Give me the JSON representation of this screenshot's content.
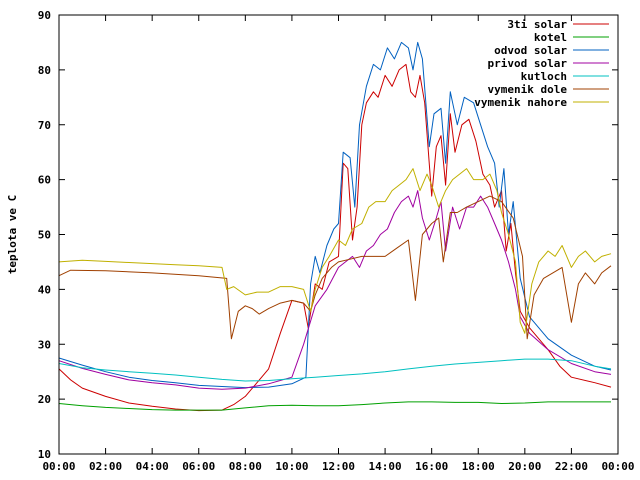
{
  "chart_data": {
    "type": "line",
    "title": "",
    "xlabel": "",
    "ylabel": "teplota ve C",
    "xlim": [
      0,
      24
    ],
    "ylim": [
      10,
      90
    ],
    "grid": false,
    "legend_position": "top-right",
    "x_ticks": [
      "00:00",
      "02:00",
      "04:00",
      "06:00",
      "08:00",
      "10:00",
      "12:00",
      "14:00",
      "16:00",
      "18:00",
      "20:00",
      "22:00",
      "00:00"
    ],
    "y_ticks": [
      "10",
      "20",
      "30",
      "40",
      "50",
      "60",
      "70",
      "80",
      "90"
    ],
    "series": [
      {
        "name": "3ti solar",
        "color": "#cc0000",
        "points": [
          [
            0,
            25.5
          ],
          [
            0.5,
            23.5
          ],
          [
            1,
            22
          ],
          [
            2,
            20.5
          ],
          [
            3,
            19.3
          ],
          [
            4,
            18.7
          ],
          [
            5,
            18.2
          ],
          [
            6,
            17.9
          ],
          [
            7,
            18
          ],
          [
            7.5,
            19
          ],
          [
            8,
            20.5
          ],
          [
            8.5,
            23
          ],
          [
            9,
            25.5
          ],
          [
            9.5,
            32
          ],
          [
            10,
            38
          ],
          [
            10.5,
            37.5
          ],
          [
            10.7,
            33
          ],
          [
            11,
            41
          ],
          [
            11.3,
            40
          ],
          [
            11.6,
            45
          ],
          [
            12,
            46
          ],
          [
            12.2,
            63
          ],
          [
            12.4,
            62
          ],
          [
            12.6,
            49
          ],
          [
            12.8,
            55
          ],
          [
            13,
            70
          ],
          [
            13.2,
            74
          ],
          [
            13.5,
            76
          ],
          [
            13.7,
            75
          ],
          [
            14,
            79
          ],
          [
            14.3,
            77
          ],
          [
            14.6,
            80
          ],
          [
            14.9,
            81
          ],
          [
            15.1,
            76
          ],
          [
            15.3,
            75
          ],
          [
            15.5,
            79
          ],
          [
            15.7,
            74
          ],
          [
            16,
            57
          ],
          [
            16.2,
            66
          ],
          [
            16.4,
            68
          ],
          [
            16.6,
            59
          ],
          [
            16.8,
            72
          ],
          [
            17,
            65
          ],
          [
            17.3,
            70
          ],
          [
            17.6,
            71
          ],
          [
            17.9,
            67
          ],
          [
            18.2,
            61
          ],
          [
            18.5,
            59
          ],
          [
            18.7,
            55
          ],
          [
            19,
            58
          ],
          [
            19.2,
            47
          ],
          [
            19.4,
            52
          ],
          [
            19.6,
            43
          ],
          [
            19.8,
            36
          ],
          [
            20.2,
            33
          ],
          [
            21,
            29
          ],
          [
            21.5,
            26
          ],
          [
            22,
            24
          ],
          [
            23,
            23
          ],
          [
            23.7,
            22.2
          ]
        ]
      },
      {
        "name": "kotel",
        "color": "#00a000",
        "points": [
          [
            0,
            19.2
          ],
          [
            1,
            18.8
          ],
          [
            2,
            18.5
          ],
          [
            3,
            18.3
          ],
          [
            4,
            18.1
          ],
          [
            5,
            18
          ],
          [
            6,
            18
          ],
          [
            7,
            18
          ],
          [
            8,
            18.4
          ],
          [
            9,
            18.8
          ],
          [
            10,
            18.9
          ],
          [
            11,
            18.8
          ],
          [
            12,
            18.8
          ],
          [
            13,
            19
          ],
          [
            14,
            19.3
          ],
          [
            15,
            19.5
          ],
          [
            16,
            19.5
          ],
          [
            17,
            19.4
          ],
          [
            18,
            19.4
          ],
          [
            19,
            19.2
          ],
          [
            20,
            19.3
          ],
          [
            21,
            19.5
          ],
          [
            22,
            19.5
          ],
          [
            23,
            19.5
          ],
          [
            23.7,
            19.5
          ]
        ]
      },
      {
        "name": "odvod solar",
        "color": "#0060c0",
        "points": [
          [
            0,
            27.5
          ],
          [
            1,
            26.2
          ],
          [
            2,
            25
          ],
          [
            3,
            24
          ],
          [
            4,
            23.4
          ],
          [
            5,
            23
          ],
          [
            6,
            22.5
          ],
          [
            7,
            22.3
          ],
          [
            8,
            22.1
          ],
          [
            9,
            22.2
          ],
          [
            10,
            22.8
          ],
          [
            10.6,
            24
          ],
          [
            10.8,
            41
          ],
          [
            11,
            46
          ],
          [
            11.2,
            43
          ],
          [
            11.5,
            48
          ],
          [
            11.8,
            51
          ],
          [
            12,
            52
          ],
          [
            12.2,
            65
          ],
          [
            12.5,
            64
          ],
          [
            12.7,
            55
          ],
          [
            12.9,
            70
          ],
          [
            13.2,
            77
          ],
          [
            13.5,
            81
          ],
          [
            13.8,
            80
          ],
          [
            14.1,
            84
          ],
          [
            14.4,
            82
          ],
          [
            14.7,
            85
          ],
          [
            15,
            84
          ],
          [
            15.2,
            80
          ],
          [
            15.4,
            85
          ],
          [
            15.6,
            82
          ],
          [
            15.9,
            66
          ],
          [
            16.1,
            72
          ],
          [
            16.4,
            73
          ],
          [
            16.6,
            63
          ],
          [
            16.8,
            76
          ],
          [
            17.1,
            70
          ],
          [
            17.4,
            75
          ],
          [
            17.8,
            74
          ],
          [
            18.1,
            70
          ],
          [
            18.4,
            66
          ],
          [
            18.7,
            63
          ],
          [
            18.9,
            55
          ],
          [
            19.1,
            62
          ],
          [
            19.3,
            50
          ],
          [
            19.5,
            56
          ],
          [
            19.8,
            42
          ],
          [
            20.2,
            35
          ],
          [
            21,
            31
          ],
          [
            22,
            28
          ],
          [
            23,
            26
          ],
          [
            23.7,
            25.3
          ]
        ]
      },
      {
        "name": "privod solar",
        "color": "#a000a0",
        "points": [
          [
            0,
            27
          ],
          [
            1,
            25.6
          ],
          [
            2,
            24.5
          ],
          [
            3,
            23.5
          ],
          [
            4,
            23
          ],
          [
            5,
            22.6
          ],
          [
            6,
            22
          ],
          [
            7,
            21.8
          ],
          [
            8,
            22
          ],
          [
            9,
            22.8
          ],
          [
            10,
            24
          ],
          [
            10.5,
            30
          ],
          [
            11,
            37
          ],
          [
            11.5,
            40
          ],
          [
            12,
            44
          ],
          [
            12.3,
            45
          ],
          [
            12.6,
            46
          ],
          [
            12.9,
            44
          ],
          [
            13.2,
            47
          ],
          [
            13.5,
            48
          ],
          [
            13.8,
            50
          ],
          [
            14.1,
            51
          ],
          [
            14.4,
            54
          ],
          [
            14.7,
            56
          ],
          [
            15,
            57
          ],
          [
            15.2,
            55
          ],
          [
            15.4,
            58
          ],
          [
            15.6,
            53
          ],
          [
            15.9,
            49
          ],
          [
            16.2,
            53
          ],
          [
            16.4,
            56
          ],
          [
            16.6,
            47
          ],
          [
            16.9,
            55
          ],
          [
            17.2,
            51
          ],
          [
            17.5,
            55
          ],
          [
            17.8,
            55
          ],
          [
            18.1,
            57
          ],
          [
            18.4,
            55
          ],
          [
            18.7,
            52
          ],
          [
            19,
            49
          ],
          [
            19.3,
            45
          ],
          [
            19.6,
            40
          ],
          [
            19.8,
            35
          ],
          [
            20.2,
            32
          ],
          [
            21,
            29
          ],
          [
            22,
            26.5
          ],
          [
            23,
            25
          ],
          [
            23.7,
            24.5
          ]
        ]
      },
      {
        "name": "kutloch",
        "color": "#00c0c0",
        "points": [
          [
            0,
            26.5
          ],
          [
            1,
            25.7
          ],
          [
            2,
            25.3
          ],
          [
            3,
            25
          ],
          [
            4,
            24.7
          ],
          [
            5,
            24.4
          ],
          [
            6,
            24
          ],
          [
            7,
            23.6
          ],
          [
            8,
            23.3
          ],
          [
            9,
            23.4
          ],
          [
            10,
            23.7
          ],
          [
            11,
            24
          ],
          [
            12,
            24.3
          ],
          [
            13,
            24.6
          ],
          [
            14,
            25
          ],
          [
            15,
            25.5
          ],
          [
            16,
            26
          ],
          [
            17,
            26.4
          ],
          [
            18,
            26.7
          ],
          [
            19,
            27
          ],
          [
            20,
            27.3
          ],
          [
            21,
            27.3
          ],
          [
            22,
            27
          ],
          [
            23,
            26
          ],
          [
            23.7,
            25.5
          ]
        ]
      },
      {
        "name": "vymenik dole",
        "color": "#a04000",
        "points": [
          [
            0,
            42.5
          ],
          [
            0.5,
            43.5
          ],
          [
            2,
            43.4
          ],
          [
            4,
            43
          ],
          [
            6,
            42.5
          ],
          [
            7.2,
            42
          ],
          [
            7.4,
            31
          ],
          [
            7.7,
            36
          ],
          [
            8,
            37
          ],
          [
            8.3,
            36.5
          ],
          [
            8.6,
            35.5
          ],
          [
            9,
            36.5
          ],
          [
            9.5,
            37.5
          ],
          [
            10,
            38
          ],
          [
            10.5,
            37.5
          ],
          [
            10.8,
            36
          ],
          [
            11,
            39
          ],
          [
            11.3,
            42
          ],
          [
            11.7,
            44
          ],
          [
            12,
            45
          ],
          [
            12.5,
            45.5
          ],
          [
            13,
            46
          ],
          [
            13.5,
            46
          ],
          [
            14,
            46
          ],
          [
            14.5,
            47.5
          ],
          [
            15,
            49
          ],
          [
            15.3,
            38
          ],
          [
            15.6,
            50
          ],
          [
            16,
            52
          ],
          [
            16.3,
            53
          ],
          [
            16.5,
            45
          ],
          [
            16.8,
            54
          ],
          [
            17.1,
            54
          ],
          [
            17.5,
            55
          ],
          [
            18,
            56
          ],
          [
            18.5,
            57
          ],
          [
            19,
            56
          ],
          [
            19.5,
            53
          ],
          [
            19.9,
            46
          ],
          [
            20.1,
            31
          ],
          [
            20.4,
            39
          ],
          [
            20.8,
            42
          ],
          [
            21.2,
            43
          ],
          [
            21.6,
            44
          ],
          [
            22,
            34
          ],
          [
            22.3,
            41
          ],
          [
            22.6,
            43
          ],
          [
            23,
            41
          ],
          [
            23.3,
            43
          ],
          [
            23.7,
            44.3
          ]
        ]
      },
      {
        "name": "vymenik nahore",
        "color": "#c0b000",
        "points": [
          [
            0,
            45
          ],
          [
            1,
            45.3
          ],
          [
            2,
            45.1
          ],
          [
            3,
            44.9
          ],
          [
            4,
            44.7
          ],
          [
            5,
            44.5
          ],
          [
            6,
            44.3
          ],
          [
            7,
            44
          ],
          [
            7.2,
            40
          ],
          [
            7.5,
            40.5
          ],
          [
            8,
            39
          ],
          [
            8.5,
            39.5
          ],
          [
            9,
            39.5
          ],
          [
            9.5,
            40.5
          ],
          [
            10,
            40.5
          ],
          [
            10.5,
            40
          ],
          [
            10.8,
            36
          ],
          [
            11,
            40
          ],
          [
            11.3,
            44
          ],
          [
            11.6,
            46
          ],
          [
            12,
            49
          ],
          [
            12.3,
            48
          ],
          [
            12.6,
            51
          ],
          [
            13,
            52
          ],
          [
            13.3,
            55
          ],
          [
            13.6,
            56
          ],
          [
            14,
            56
          ],
          [
            14.3,
            58
          ],
          [
            14.6,
            59
          ],
          [
            14.9,
            60
          ],
          [
            15.2,
            62
          ],
          [
            15.5,
            58
          ],
          [
            15.8,
            61
          ],
          [
            16,
            59
          ],
          [
            16.3,
            55
          ],
          [
            16.6,
            58
          ],
          [
            16.9,
            60
          ],
          [
            17.2,
            61
          ],
          [
            17.5,
            62
          ],
          [
            17.8,
            60
          ],
          [
            18.2,
            60
          ],
          [
            18.5,
            61
          ],
          [
            18.8,
            58
          ],
          [
            19,
            54
          ],
          [
            19.3,
            50
          ],
          [
            19.6,
            45
          ],
          [
            19.8,
            34
          ],
          [
            20,
            32
          ],
          [
            20.3,
            41
          ],
          [
            20.6,
            45
          ],
          [
            21,
            47
          ],
          [
            21.3,
            46
          ],
          [
            21.6,
            48
          ],
          [
            22,
            44
          ],
          [
            22.3,
            46
          ],
          [
            22.6,
            47
          ],
          [
            23,
            45
          ],
          [
            23.3,
            46
          ],
          [
            23.7,
            46.5
          ]
        ]
      }
    ]
  }
}
